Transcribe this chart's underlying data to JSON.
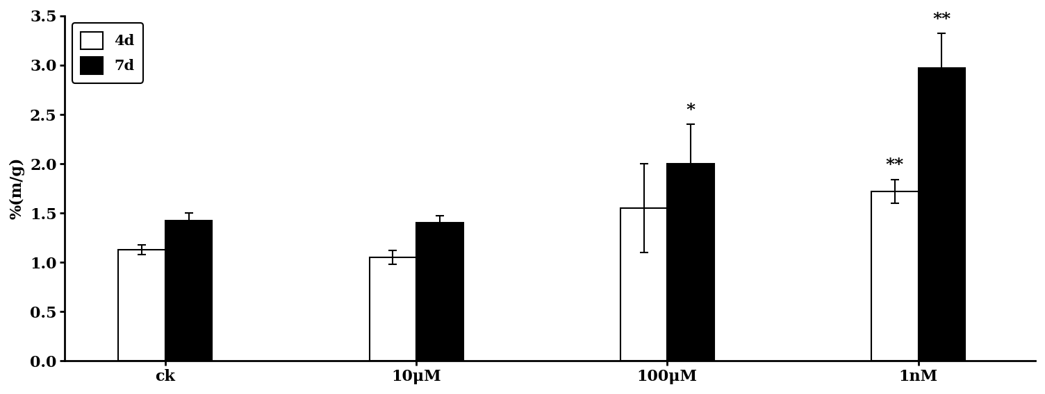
{
  "categories": [
    "ck",
    "10μM",
    "100μM",
    "1nM"
  ],
  "bar4d_values": [
    1.13,
    1.05,
    1.55,
    1.72
  ],
  "bar7d_values": [
    1.42,
    1.4,
    2.0,
    2.97
  ],
  "bar4d_errors": [
    0.05,
    0.07,
    0.45,
    0.12
  ],
  "bar7d_errors": [
    0.08,
    0.07,
    0.4,
    0.35
  ],
  "bar4d_color": "#ffffff",
  "bar7d_color": "#000000",
  "bar_edgecolor": "#000000",
  "bar_width": 0.28,
  "group_positions": [
    1.0,
    2.5,
    4.0,
    5.5
  ],
  "ylabel": "%(m/g)",
  "ylim": [
    0.0,
    3.5
  ],
  "yticks": [
    0.0,
    0.5,
    1.0,
    1.5,
    2.0,
    2.5,
    3.0,
    3.5
  ],
  "legend_labels": [
    "4d",
    "7d"
  ],
  "annotations_4d": [
    "",
    "",
    "",
    "**"
  ],
  "annotations_7d": [
    "",
    "",
    "*",
    "**"
  ],
  "background_color": "#ffffff",
  "fig_width": 15.04,
  "fig_height": 5.68,
  "dpi": 100
}
